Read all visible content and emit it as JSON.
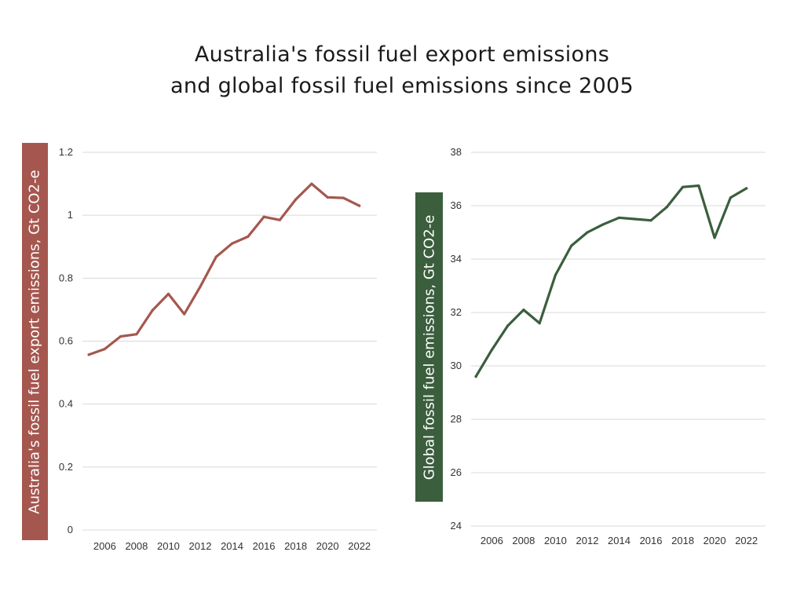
{
  "title": {
    "line1": "Australia's fossil fuel export emissions",
    "line2": "and global fossil fuel emissions since 2005"
  },
  "colors": {
    "australia": "#a5574f",
    "global": "#3b5e3d",
    "grid": "#d9d9d9"
  },
  "chart_data": [
    {
      "type": "line",
      "ylabel": "Australia's fossil fuel export emissions, Gt CO2-e",
      "xlabel": "",
      "x": [
        2005,
        2006,
        2007,
        2008,
        2009,
        2010,
        2011,
        2012,
        2013,
        2014,
        2015,
        2016,
        2017,
        2018,
        2019,
        2020,
        2021,
        2022
      ],
      "series": [
        {
          "values": [
            0.557,
            0.575,
            0.615,
            0.622,
            0.698,
            0.75,
            0.686,
            0.773,
            0.868,
            0.91,
            0.932,
            0.995,
            0.985,
            1.05,
            1.1,
            1.057,
            1.055,
            1.03
          ]
        }
      ],
      "ylim": [
        0,
        1.2
      ],
      "yticks": [
        0,
        0.2,
        0.4,
        0.6,
        0.8,
        1,
        1.2
      ],
      "ytick_labels": [
        "0",
        "0.2",
        "0.4",
        "0.6",
        "0.8",
        "1",
        "1.2"
      ],
      "xticks": [
        2006,
        2008,
        2010,
        2012,
        2014,
        2016,
        2018,
        2020,
        2022
      ],
      "xtick_labels": [
        "2006",
        "2008",
        "2010",
        "2012",
        "2014",
        "2016",
        "2018",
        "2020",
        "2022"
      ],
      "grid": true,
      "legend": "none"
    },
    {
      "type": "line",
      "ylabel": "Global fossil fuel emissions, Gt CO2-e",
      "xlabel": "",
      "x": [
        2005,
        2006,
        2007,
        2008,
        2009,
        2010,
        2011,
        2012,
        2013,
        2014,
        2015,
        2016,
        2017,
        2018,
        2019,
        2020,
        2021,
        2022
      ],
      "series": [
        {
          "values": [
            29.6,
            30.6,
            31.5,
            32.1,
            31.6,
            33.4,
            34.5,
            35.0,
            35.3,
            35.55,
            35.5,
            35.45,
            35.95,
            36.7,
            36.75,
            34.8,
            36.3,
            36.65
          ]
        }
      ],
      "ylim": [
        24,
        38
      ],
      "yticks": [
        24,
        26,
        28,
        30,
        32,
        34,
        36,
        38
      ],
      "ytick_labels": [
        "24",
        "26",
        "28",
        "30",
        "32",
        "34",
        "36",
        "38"
      ],
      "xticks": [
        2006,
        2008,
        2010,
        2012,
        2014,
        2016,
        2018,
        2020,
        2022
      ],
      "xtick_labels": [
        "2006",
        "2008",
        "2010",
        "2012",
        "2014",
        "2016",
        "2018",
        "2020",
        "2022"
      ],
      "grid": true,
      "legend": "none"
    }
  ]
}
